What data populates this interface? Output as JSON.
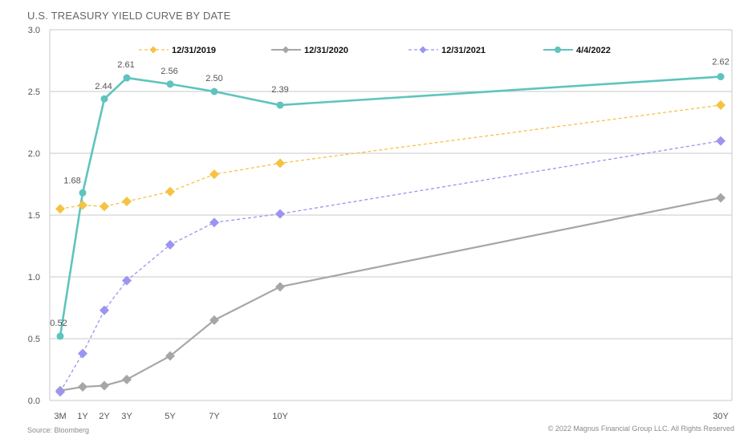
{
  "header": {
    "title": "U.S. TREASURY YIELD CURVE BY DATE"
  },
  "footer": {
    "source": "Source: Bloomberg",
    "copyright": "© 2022 Magnus Financial Group LLC. All Rights Reserved"
  },
  "chart_data": {
    "type": "line",
    "title": "U.S. TREASURY YIELD CURVE BY DATE",
    "x": [
      0.25,
      1,
      2,
      3,
      5,
      7,
      10,
      30
    ],
    "x_tick_labels": [
      "3M",
      "1Y",
      "2Y",
      "3Y",
      "5Y",
      "7Y",
      "10Y",
      "30Y"
    ],
    "y_ticks": [
      "0.0",
      "0.5",
      "1.0",
      "1.5",
      "2.0",
      "2.5",
      "3.0"
    ],
    "ylim": [
      0,
      3.0
    ],
    "grid": true,
    "legend_position": "top",
    "series": [
      {
        "name": "12/31/2019",
        "color": "#F5C342",
        "dashed": true,
        "marker": "diamond",
        "values": [
          1.55,
          1.58,
          1.57,
          1.61,
          1.69,
          1.83,
          1.92,
          2.39
        ]
      },
      {
        "name": "12/31/2020",
        "color": "#A6A6A6",
        "dashed": false,
        "marker": "diamond",
        "values": [
          0.08,
          0.11,
          0.12,
          0.17,
          0.36,
          0.65,
          0.92,
          1.64
        ]
      },
      {
        "name": "12/31/2021",
        "color": "#9B94F0",
        "dashed": true,
        "marker": "diamond",
        "values": [
          0.07,
          0.38,
          0.73,
          0.97,
          1.26,
          1.44,
          1.51,
          2.1
        ]
      },
      {
        "name": "4/4/2022",
        "color": "#5EC4BD",
        "dashed": false,
        "marker": "circle",
        "values": [
          0.52,
          1.68,
          2.44,
          2.61,
          2.56,
          2.5,
          2.39,
          2.62
        ],
        "data_labels": [
          "0.52",
          "1.68",
          "2.44",
          "2.61",
          "2.56",
          "2.50",
          "2.39",
          "2.62"
        ]
      }
    ]
  }
}
